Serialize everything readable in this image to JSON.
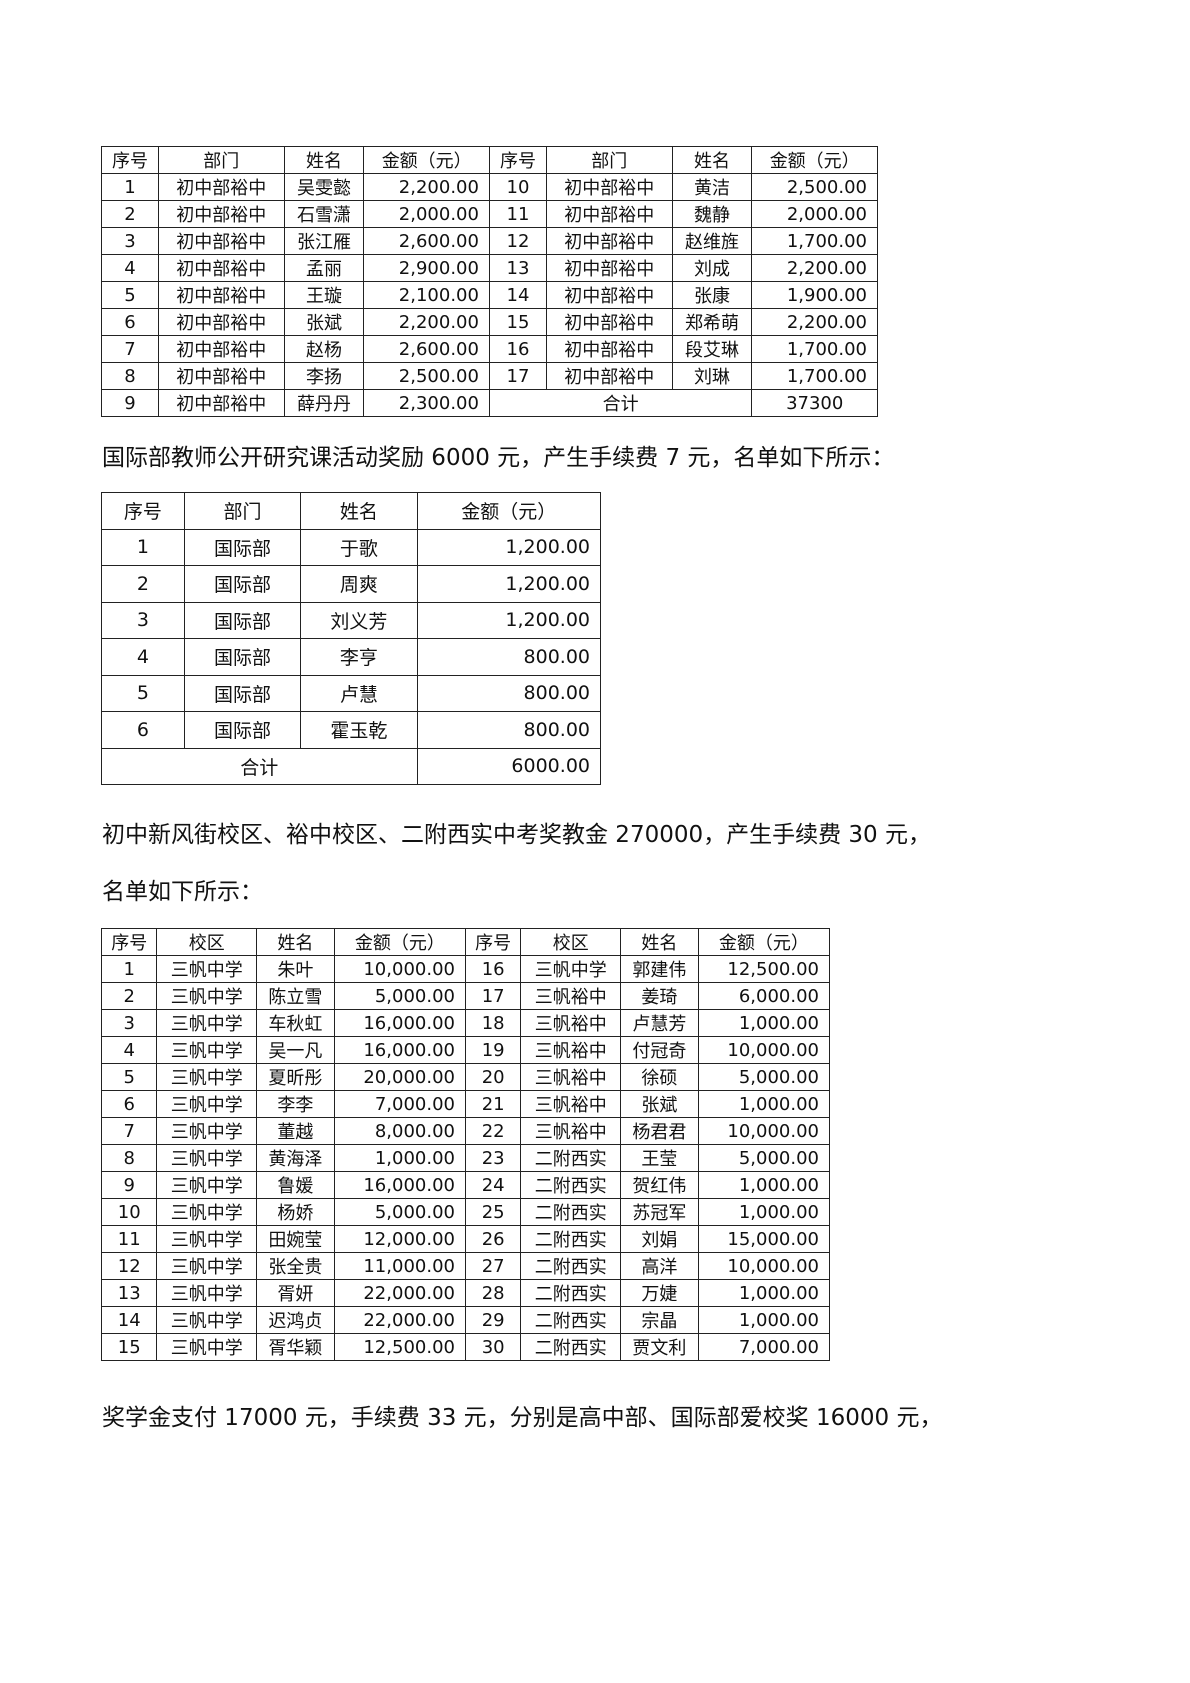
{
  "table1": {
    "headers": [
      "序号",
      "部门",
      "姓名",
      "金额（元）",
      "序号",
      "部门",
      "姓名",
      "金额（元）"
    ],
    "left": [
      [
        "1",
        "初中部裕中",
        "吴雯懿",
        "2,200.00"
      ],
      [
        "2",
        "初中部裕中",
        "石雪潇",
        "2,000.00"
      ],
      [
        "3",
        "初中部裕中",
        "张江雁",
        "2,600.00"
      ],
      [
        "4",
        "初中部裕中",
        "孟丽",
        "2,900.00"
      ],
      [
        "5",
        "初中部裕中",
        "王璇",
        "2,100.00"
      ],
      [
        "6",
        "初中部裕中",
        "张斌",
        "2,200.00"
      ],
      [
        "7",
        "初中部裕中",
        "赵杨",
        "2,600.00"
      ],
      [
        "8",
        "初中部裕中",
        "李扬",
        "2,500.00"
      ],
      [
        "9",
        "初中部裕中",
        "薛丹丹",
        "2,300.00"
      ]
    ],
    "right": [
      [
        "10",
        "初中部裕中",
        "黄洁",
        "2,500.00"
      ],
      [
        "11",
        "初中部裕中",
        "魏静",
        "2,000.00"
      ],
      [
        "12",
        "初中部裕中",
        "赵维旌",
        "1,700.00"
      ],
      [
        "13",
        "初中部裕中",
        "刘成",
        "2,200.00"
      ],
      [
        "14",
        "初中部裕中",
        "张康",
        "1,900.00"
      ],
      [
        "15",
        "初中部裕中",
        "郑希萌",
        "2,200.00"
      ],
      [
        "16",
        "初中部裕中",
        "段艾琳",
        "1,700.00"
      ],
      [
        "17",
        "初中部裕中",
        "刘琳",
        "1,700.00"
      ]
    ],
    "total_label": "合计",
    "total_value": "37300"
  },
  "paragraph1": "国际部教师公开研究课活动奖励 6000 元，产生手续费 7 元，名单如下所示：",
  "table2": {
    "headers": [
      "序号",
      "部门",
      "姓名",
      "金额（元）"
    ],
    "rows": [
      [
        "1",
        "国际部",
        "于歌",
        "1,200.00"
      ],
      [
        "2",
        "国际部",
        "周爽",
        "1,200.00"
      ],
      [
        "3",
        "国际部",
        "刘义芳",
        "1,200.00"
      ],
      [
        "4",
        "国际部",
        "李亨",
        "800.00"
      ],
      [
        "5",
        "国际部",
        "卢慧",
        "800.00"
      ],
      [
        "6",
        "国际部",
        "霍玉乾",
        "800.00"
      ]
    ],
    "total_label": "合计",
    "total_value": "6000.00"
  },
  "paragraph2": "初中新风街校区、裕中校区、二附西实中考奖教金 270000，产生手续费 30 元，",
  "paragraph3": "名单如下所示：",
  "table3": {
    "headers": [
      "序号",
      "校区",
      "姓名",
      "金额（元）",
      "序号",
      "校区",
      "姓名",
      "金额（元）"
    ],
    "left": [
      [
        "1",
        "三帆中学",
        "朱叶",
        "10,000.00"
      ],
      [
        "2",
        "三帆中学",
        "陈立雪",
        "5,000.00"
      ],
      [
        "3",
        "三帆中学",
        "车秋虹",
        "16,000.00"
      ],
      [
        "4",
        "三帆中学",
        "吴一凡",
        "16,000.00"
      ],
      [
        "5",
        "三帆中学",
        "夏昕彤",
        "20,000.00"
      ],
      [
        "6",
        "三帆中学",
        "李李",
        "7,000.00"
      ],
      [
        "7",
        "三帆中学",
        "董越",
        "8,000.00"
      ],
      [
        "8",
        "三帆中学",
        "黄海泽",
        "1,000.00"
      ],
      [
        "9",
        "三帆中学",
        "鲁媛",
        "16,000.00"
      ],
      [
        "10",
        "三帆中学",
        "杨娇",
        "5,000.00"
      ],
      [
        "11",
        "三帆中学",
        "田婉莹",
        "12,000.00"
      ],
      [
        "12",
        "三帆中学",
        "张全贵",
        "11,000.00"
      ],
      [
        "13",
        "三帆中学",
        "胥妍",
        "22,000.00"
      ],
      [
        "14",
        "三帆中学",
        "迟鸿贞",
        "22,000.00"
      ],
      [
        "15",
        "三帆中学",
        "胥华颖",
        "12,500.00"
      ]
    ],
    "right": [
      [
        "16",
        "三帆中学",
        "郭建伟",
        "12,500.00"
      ],
      [
        "17",
        "三帆裕中",
        "姜琦",
        "6,000.00"
      ],
      [
        "18",
        "三帆裕中",
        "卢慧芳",
        "1,000.00"
      ],
      [
        "19",
        "三帆裕中",
        "付冠奇",
        "10,000.00"
      ],
      [
        "20",
        "三帆裕中",
        "徐硕",
        "5,000.00"
      ],
      [
        "21",
        "三帆裕中",
        "张斌",
        "1,000.00"
      ],
      [
        "22",
        "三帆裕中",
        "杨君君",
        "10,000.00"
      ],
      [
        "23",
        "二附西实",
        "王莹",
        "5,000.00"
      ],
      [
        "24",
        "二附西实",
        "贺红伟",
        "1,000.00"
      ],
      [
        "25",
        "二附西实",
        "苏冠军",
        "1,000.00"
      ],
      [
        "26",
        "二附西实",
        "刘娟",
        "15,000.00"
      ],
      [
        "27",
        "二附西实",
        "高洋",
        "10,000.00"
      ],
      [
        "28",
        "二附西实",
        "万婕",
        "1,000.00"
      ],
      [
        "29",
        "二附西实",
        "宗晶",
        "1,000.00"
      ],
      [
        "30",
        "二附西实",
        "贾文利",
        "7,000.00"
      ]
    ]
  },
  "paragraph4": "奖学金支付 17000 元，手续费 33 元，分别是高中部、国际部爱校奖 16000 元，"
}
